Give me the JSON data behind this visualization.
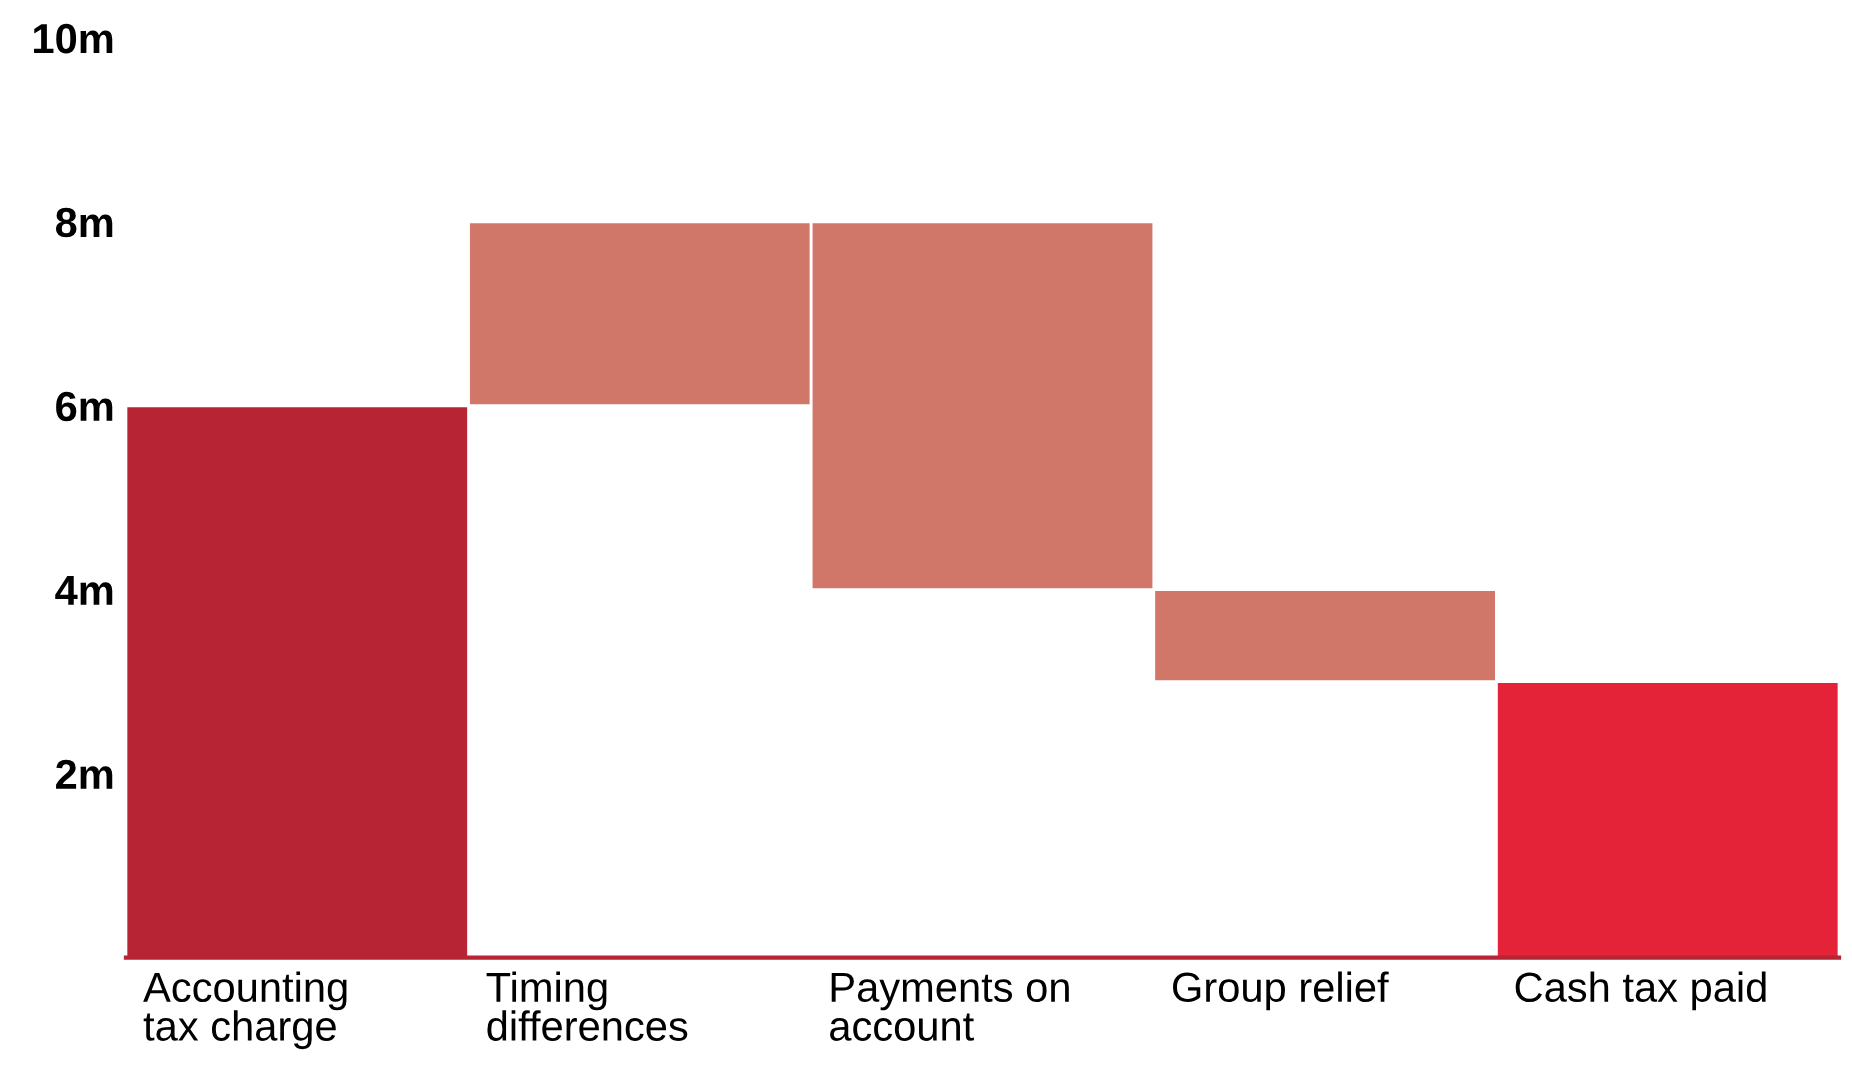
{
  "chart_data": {
    "type": "bar",
    "categories": [
      "Accounting\ntax charge",
      "Timing\ndifferences",
      "Payments on\naccount",
      "Group relief",
      "Cash tax paid"
    ],
    "values": [
      6,
      2,
      -4,
      -1,
      3
    ],
    "base": [
      0,
      6,
      8,
      4,
      0
    ],
    "colors": [
      "#b72534",
      "#d07769",
      "#d07769",
      "#d07769",
      "#e42338"
    ],
    "ylim": [
      0,
      10
    ],
    "yticks": [
      {
        "value": 2,
        "label": "2m"
      },
      {
        "value": 4,
        "label": "4m"
      },
      {
        "value": 6,
        "label": "6m"
      },
      {
        "value": 8,
        "label": "8m"
      },
      {
        "value": 10,
        "label": "10m"
      }
    ],
    "grid": false,
    "legend": false
  }
}
